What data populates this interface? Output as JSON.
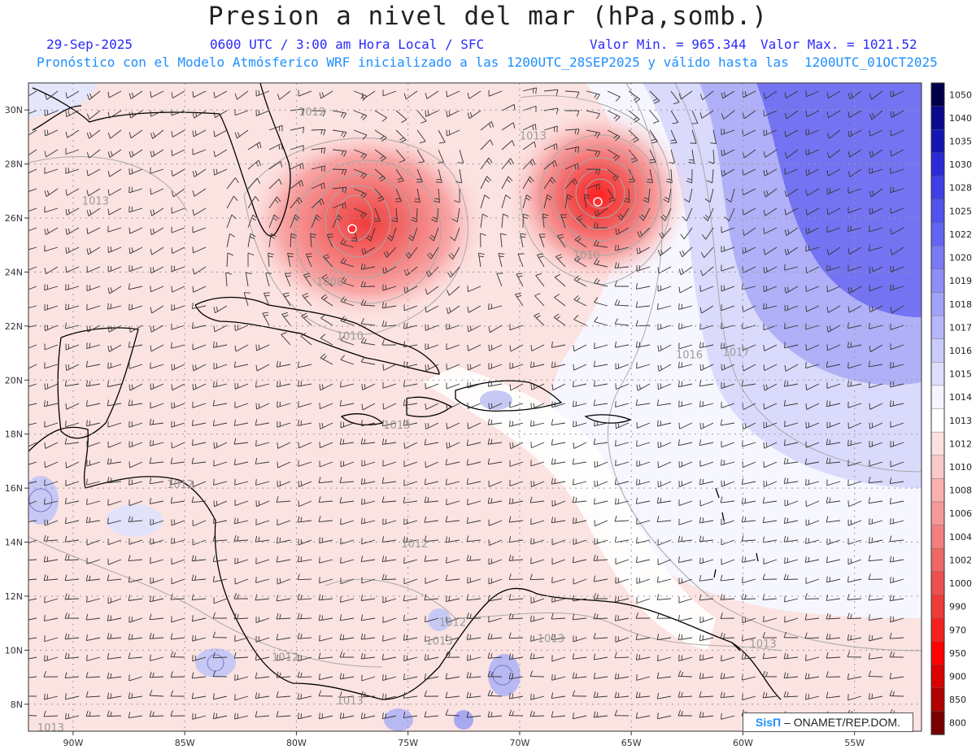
{
  "header": {
    "title": "Presion a nivel del mar (hPa,somb.)",
    "date": "29-Sep-2025",
    "time": "0600 UTC / 3:00 am Hora Local / SFC",
    "min_label": "Valor Min. = 965.344",
    "max_label": "Valor Max. = 1021.52",
    "forecast_note": "Pronóstico con el Modelo Atmósferico WRF inicializado a las 1200UTC_28SEP2025 y válido hasta las  1200UTC_01OCT2025"
  },
  "map": {
    "lon_range": [
      -92,
      -52
    ],
    "lat_range": [
      7,
      31
    ],
    "lat_ticks": [
      "30N",
      "28N",
      "26N",
      "24N",
      "22N",
      "20N",
      "18N",
      "16N",
      "14N",
      "12N",
      "10N",
      "8N"
    ],
    "lon_ticks": [
      "90W",
      "85W",
      "80W",
      "75W",
      "70W",
      "65W",
      "60W",
      "55W"
    ],
    "colorbar_levels": [
      "1050",
      "1040",
      "1035",
      "1030",
      "1028",
      "1025",
      "1022",
      "1020",
      "1019",
      "1018",
      "1017",
      "1016",
      "1015",
      "1014",
      "1013",
      "1012",
      "1010",
      "1008",
      "1006",
      "1004",
      "1002",
      "1000",
      "990",
      "970",
      "950",
      "900",
      "850",
      "800"
    ],
    "colorbar_colors": [
      "#00004a",
      "#0a0a8c",
      "#1515b4",
      "#2a2ad6",
      "#3f3fe6",
      "#5252ee",
      "#6464f2",
      "#7a7af4",
      "#8e8ef6",
      "#a2a2f8",
      "#b6b6fa",
      "#cacafb",
      "#dedefc",
      "#f4f4ff",
      "#ffffff",
      "#fde0e0",
      "#fbc8c8",
      "#f8b0b0",
      "#f59898",
      "#f28080",
      "#ef6868",
      "#ec5050",
      "#ef3a3a",
      "#f52020",
      "#ff0000",
      "#d80000",
      "#b00000",
      "#7a0000"
    ],
    "contour_labels": [
      {
        "text": "1012",
        "lon": -79.3,
        "lat": 29.8
      },
      {
        "text": "1013",
        "lon": -69.4,
        "lat": 28.9
      },
      {
        "text": "1013",
        "lon": -89.0,
        "lat": 26.5
      },
      {
        "text": "1010",
        "lon": -67.0,
        "lat": 24.5
      },
      {
        "text": "1008",
        "lon": -78.5,
        "lat": 23.5
      },
      {
        "text": "1010",
        "lon": -77.6,
        "lat": 21.5
      },
      {
        "text": "1016",
        "lon": -62.4,
        "lat": 20.8
      },
      {
        "text": "1017",
        "lon": -60.3,
        "lat": 20.9
      },
      {
        "text": "1013",
        "lon": -75.5,
        "lat": 18.2
      },
      {
        "text": "1012",
        "lon": -85.2,
        "lat": 16.0
      },
      {
        "text": "1012",
        "lon": -74.7,
        "lat": 13.8
      },
      {
        "text": "1012",
        "lon": -73.0,
        "lat": 10.9
      },
      {
        "text": "1013",
        "lon": -73.6,
        "lat": 10.2
      },
      {
        "text": "1013",
        "lon": -68.6,
        "lat": 10.3
      },
      {
        "text": "1012",
        "lon": -80.5,
        "lat": 9.6
      },
      {
        "text": "1013",
        "lon": -77.6,
        "lat": 8.0
      },
      {
        "text": "1013",
        "lon": -59.1,
        "lat": 10.1
      },
      {
        "text": "1013",
        "lon": -91.0,
        "lat": 7.0
      }
    ],
    "cyclones": [
      {
        "name": "bahamas-low",
        "lon": -77.5,
        "lat": 25.6
      },
      {
        "name": "atlantic-hurricane",
        "lon": -66.5,
        "lat": 26.6
      }
    ]
  },
  "footer": {
    "brand": "SisΠ",
    "credit": "– ONAMET/REP.DOM."
  }
}
